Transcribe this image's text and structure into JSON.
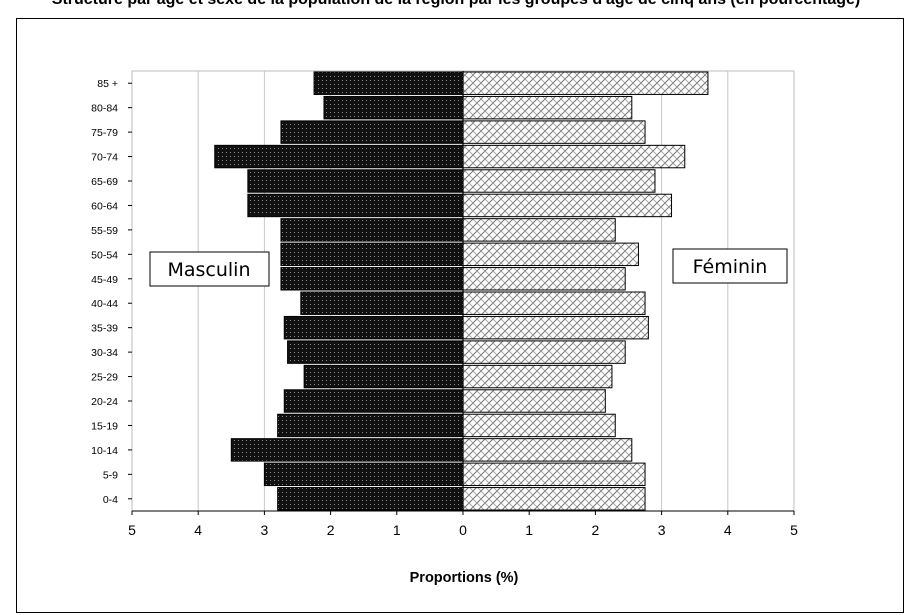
{
  "header": {
    "title": "Structure par âge et sexe de la population de la région par les groupes d'âge de cinq ans (en pourcentage)"
  },
  "chart_data": {
    "type": "bar",
    "orientation": "horizontal-population-pyramid",
    "categories": [
      "0-4",
      "5-9",
      "10-14",
      "15-19",
      "20-24",
      "25-29",
      "30-34",
      "35-39",
      "40-44",
      "45-49",
      "50-54",
      "55-59",
      "60-64",
      "65-69",
      "70-74",
      "75-79",
      "80-84",
      "85 +"
    ],
    "series": [
      {
        "name": "Masculin",
        "side": "left",
        "color": "#111111",
        "values": [
          2.8,
          3.0,
          3.5,
          2.8,
          2.7,
          2.4,
          2.65,
          2.7,
          2.45,
          2.75,
          2.75,
          2.75,
          3.25,
          3.25,
          3.75,
          2.75,
          2.1,
          2.25
        ]
      },
      {
        "name": "Féminin",
        "side": "right",
        "color": "#cccccc",
        "values": [
          2.75,
          2.75,
          2.55,
          2.3,
          2.15,
          2.25,
          2.45,
          2.8,
          2.75,
          2.45,
          2.65,
          2.3,
          3.15,
          2.9,
          3.35,
          2.75,
          2.55,
          3.7
        ]
      }
    ],
    "x_ticks": [
      "5",
      "4",
      "3",
      "2",
      "1",
      "0",
      "1",
      "2",
      "3",
      "4",
      "5"
    ],
    "xlabel": "Proportions (%)",
    "ylabel": "",
    "xlim": [
      -5,
      5
    ],
    "grid": "vertical",
    "legend": "inline-labels"
  }
}
